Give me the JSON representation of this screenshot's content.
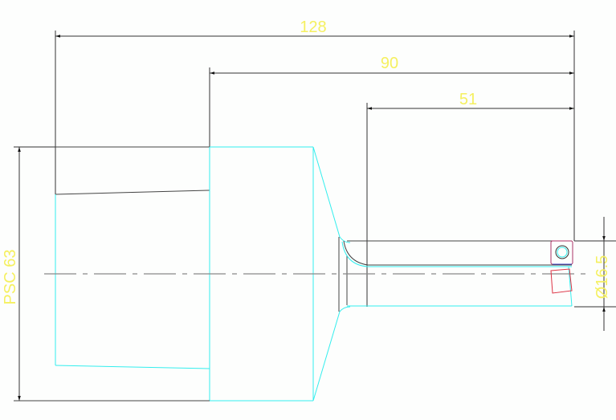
{
  "drawing": {
    "dimensions": {
      "overall_length": "128",
      "mid_length": "90",
      "bar_length": "51",
      "bar_diameter": "Ø16.5",
      "shank": "PSC 63"
    },
    "colors": {
      "dimension_text": "#f5f060",
      "outline_hidden": "#33eeee",
      "outline_visible": "#444444",
      "insert": "#dd3344",
      "insert_edge": "#4444cc"
    }
  }
}
